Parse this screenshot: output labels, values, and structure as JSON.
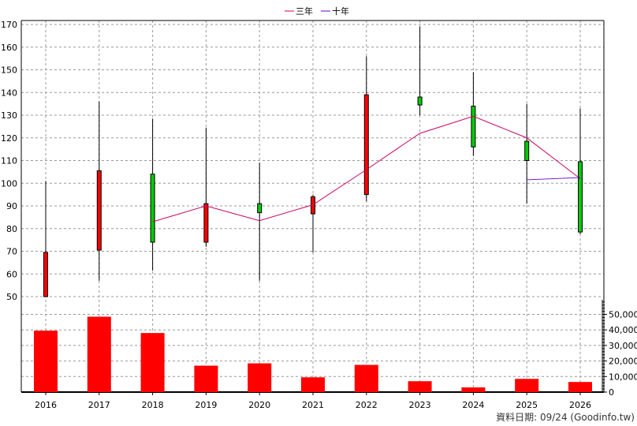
{
  "chart_data": {
    "type": "candlestick",
    "years": [
      "2016",
      "2017",
      "2018",
      "2019",
      "2020",
      "2021",
      "2022",
      "2023",
      "2024",
      "2025",
      "2026"
    ],
    "price_axis": {
      "ylim": [
        45,
        172
      ],
      "ticks": [
        50,
        60,
        70,
        80,
        90,
        100,
        110,
        120,
        130,
        140,
        150,
        160,
        170
      ]
    },
    "volume_axis": {
      "ylim": [
        0,
        60000
      ],
      "ticks": [
        "0",
        "10,000",
        "20,000",
        "30,000",
        "40,000",
        "50,000"
      ],
      "tick_values": [
        0,
        10000,
        20000,
        30000,
        40000,
        50000
      ]
    },
    "candles": [
      {
        "year": "2016",
        "open": 50,
        "close": 69.5,
        "high": 101,
        "low": 50,
        "color": "#ff0000"
      },
      {
        "year": "2017",
        "open": 70.5,
        "close": 105.5,
        "high": 136,
        "low": 57,
        "color": "#ff0000"
      },
      {
        "year": "2018",
        "open": 104,
        "close": 74,
        "high": 128.5,
        "low": 61.5,
        "color": "#00cc00"
      },
      {
        "year": "2019",
        "open": 74,
        "close": 91,
        "high": 124.5,
        "low": 72,
        "color": "#ff0000"
      },
      {
        "year": "2020",
        "open": 91,
        "close": 87,
        "high": 109,
        "low": 57,
        "color": "#00cc00"
      },
      {
        "year": "2021",
        "open": 86.5,
        "close": 94,
        "high": 95,
        "low": 69.5,
        "color": "#ff0000"
      },
      {
        "year": "2022",
        "open": 95,
        "close": 139,
        "high": 156,
        "low": 92,
        "color": "#ff0000"
      },
      {
        "year": "2023",
        "open": 138,
        "close": 134.5,
        "high": 169,
        "low": 130,
        "color": "#00cc00"
      },
      {
        "year": "2024",
        "open": 134,
        "close": 116,
        "high": 149,
        "low": 112,
        "color": "#00cc00"
      },
      {
        "year": "2025",
        "open": 118.5,
        "close": 110,
        "high": 135,
        "low": 91,
        "color": "#00cc00"
      },
      {
        "year": "2026",
        "open": 109.5,
        "close": 78.5,
        "high": 133,
        "low": 77.5,
        "color": "#00cc00"
      }
    ],
    "volume": [
      39500,
      48500,
      38000,
      17000,
      18500,
      9500,
      17500,
      7000,
      3000,
      8500,
      6500
    ],
    "series": [
      {
        "name": "三年",
        "color": "#cc0066",
        "years": [
          "2018",
          "2019",
          "2020",
          "2021",
          "2022",
          "2023",
          "2024",
          "2025",
          "2026"
        ],
        "values": [
          83,
          90,
          83.5,
          90.5,
          106,
          122,
          129.5,
          120,
          102
        ]
      },
      {
        "name": "十年",
        "color": "#6600cc",
        "years": [
          "2025",
          "2026"
        ],
        "values": [
          101.5,
          102.5
        ]
      }
    ],
    "legend_position": "top-center",
    "grid": true
  },
  "footer": {
    "text": "資料日期: 09/24  (Goodinfo.tw)"
  }
}
